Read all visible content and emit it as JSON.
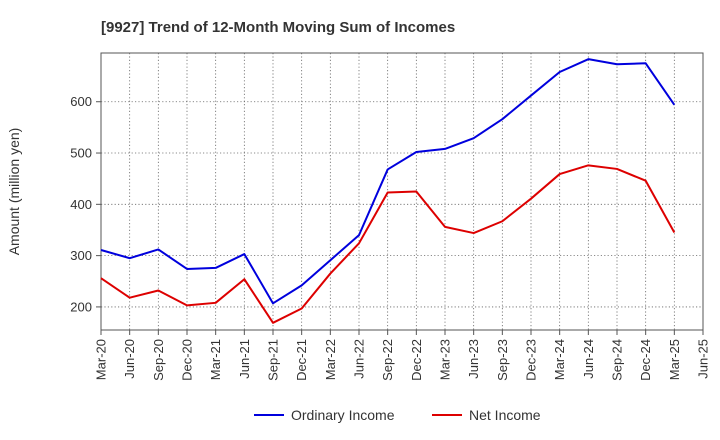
{
  "chart_data": {
    "type": "line",
    "title": "[9927]  Trend of 12-Month Moving Sum of Incomes",
    "xlabel": "",
    "ylabel": "Amount (million yen)",
    "ylim": [
      155,
      695
    ],
    "yticks": [
      200,
      300,
      400,
      500,
      600
    ],
    "grid": true,
    "legend_position": "bottom-center",
    "categories": [
      "Mar-20",
      "Jun-20",
      "Sep-20",
      "Dec-20",
      "Mar-21",
      "Jun-21",
      "Sep-21",
      "Dec-21",
      "Mar-22",
      "Jun-22",
      "Sep-22",
      "Dec-22",
      "Mar-23",
      "Jun-23",
      "Sep-23",
      "Dec-23",
      "Mar-24",
      "Jun-24",
      "Sep-24",
      "Dec-24",
      "Mar-25",
      "Jun-25"
    ],
    "series": [
      {
        "name": "Ordinary Income",
        "color": "#0000dd",
        "values": [
          311,
          295,
          312,
          274,
          276,
          303,
          207,
          242,
          291,
          340,
          468,
          502,
          508,
          529,
          566,
          612,
          658,
          683,
          673,
          675,
          594,
          null
        ]
      },
      {
        "name": "Net Income",
        "color": "#dd0000",
        "values": [
          256,
          218,
          232,
          203,
          208,
          254,
          169,
          197,
          265,
          324,
          423,
          425,
          356,
          344,
          367,
          411,
          459,
          476,
          469,
          446,
          345,
          null
        ]
      }
    ]
  }
}
